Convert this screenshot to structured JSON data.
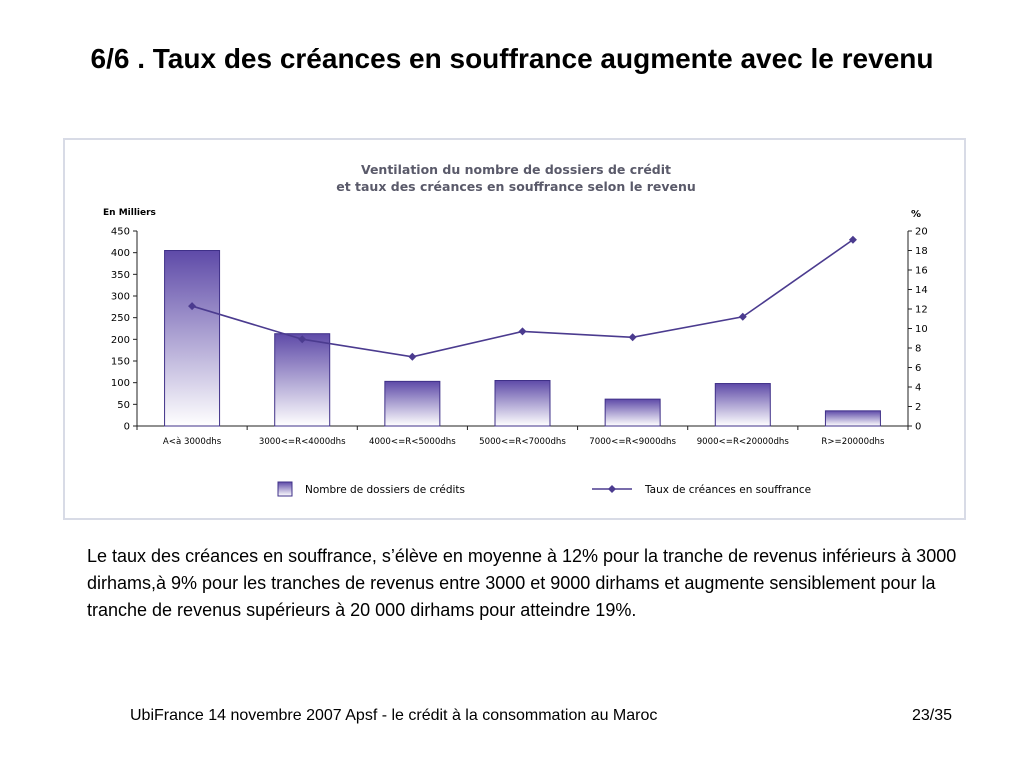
{
  "slide": {
    "title": "6/6 . Taux des créances en souffrance augmente avec le revenu",
    "body": "Le taux des créances en souffrance, s’élève en moyenne à 12% pour la tranche de revenus inférieurs à 3000 dirhams,à 9% pour les tranches de revenus entre 3000 et 9000 dirhams et augmente sensiblement pour la tranche de revenus supérieurs à 20 000 dirhams pour atteindre 19%.",
    "footer_source": "UbiFrance 14 novembre 2007  Apsf - le crédit à la consommation au Maroc",
    "footer_page": "23/35"
  },
  "colors": {
    "bar_top": "#5e4aa8",
    "bar_bottom": "#ffffff",
    "bar_border": "#3f3088",
    "line": "#4b3b8f",
    "title_text": "#5a5a6a",
    "axis": "#222222"
  },
  "chart_data": {
    "type": "bar",
    "title_line1": "Ventilation du nombre de dossiers de crédit",
    "title_line2": "et taux des créances en souffrance selon le revenu",
    "y_left_unit": "En Milliers",
    "y_right_unit": "%",
    "categories": [
      "A<à 3000dhs",
      "3000<=R<4000dhs",
      "4000<=R<5000dhs",
      "5000<=R<7000dhs",
      "7000<=R<9000dhs",
      "9000<=R<20000dhs",
      "R>=20000dhs"
    ],
    "ylim_left": [
      0,
      450
    ],
    "yticks_left": [
      0,
      50,
      100,
      150,
      200,
      250,
      300,
      350,
      400,
      450
    ],
    "ylim_right": [
      0,
      20
    ],
    "yticks_right": [
      0,
      2,
      4,
      6,
      8,
      10,
      12,
      14,
      16,
      18,
      20
    ],
    "series": [
      {
        "name": "Nombre de dossiers de crédits",
        "type": "bar",
        "axis": "left",
        "values": [
          405,
          213,
          103,
          105,
          62,
          98,
          35
        ]
      },
      {
        "name": "Taux de créances en souffrance",
        "type": "line",
        "axis": "right",
        "values": [
          12.3,
          8.9,
          7.1,
          9.7,
          9.1,
          11.2,
          19.1
        ]
      }
    ],
    "legend_position": "bottom",
    "grid": false
  }
}
